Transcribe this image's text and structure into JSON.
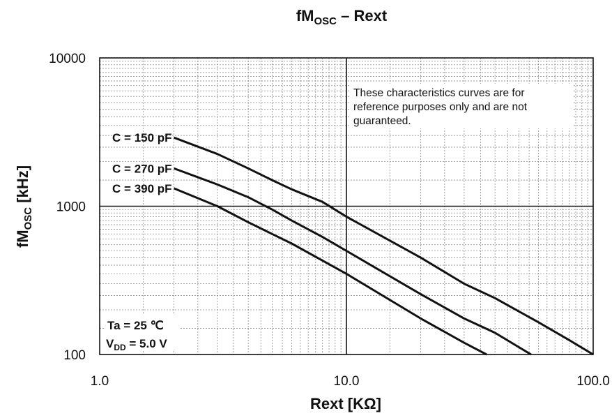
{
  "chart_data": {
    "type": "line",
    "title": {
      "main": "fM",
      "sub": "OSC",
      "rest": " – Rext"
    },
    "xlabel": "Rext [KΩ]",
    "ylabel": {
      "main": "fM",
      "sub": "OSC",
      "rest": " [kHz]"
    },
    "x_scale": "log",
    "y_scale": "log",
    "xlim": [
      1.0,
      100.0
    ],
    "ylim": [
      100,
      10000
    ],
    "x_ticks": [
      {
        "value": 1,
        "label": "1.0"
      },
      {
        "value": 10,
        "label": "10.0"
      },
      {
        "value": 100,
        "label": "100.0"
      }
    ],
    "y_ticks": [
      {
        "value": 100,
        "label": "100"
      },
      {
        "value": 1000,
        "label": "1000"
      },
      {
        "value": 10000,
        "label": "10000"
      }
    ],
    "grid": true,
    "series": [
      {
        "name": "C = 150 pF",
        "points": [
          [
            2.0,
            2900
          ],
          [
            3.0,
            2250
          ],
          [
            4.0,
            1800
          ],
          [
            5.0,
            1500
          ],
          [
            6.0,
            1300
          ],
          [
            8.0,
            1070
          ],
          [
            10.0,
            850
          ],
          [
            20.0,
            450
          ],
          [
            30.0,
            300
          ],
          [
            40.0,
            240
          ],
          [
            60.0,
            165
          ],
          [
            80.0,
            125
          ],
          [
            100.0,
            100
          ]
        ]
      },
      {
        "name": "C = 270 pF",
        "points": [
          [
            2.0,
            1800
          ],
          [
            3.0,
            1400
          ],
          [
            4.0,
            1150
          ],
          [
            5.0,
            950
          ],
          [
            6.0,
            800
          ],
          [
            8.0,
            620
          ],
          [
            10.0,
            500
          ],
          [
            20.0,
            255
          ],
          [
            30.0,
            175
          ],
          [
            40.0,
            140
          ],
          [
            56.0,
            100
          ]
        ]
      },
      {
        "name": "C = 390 pF",
        "points": [
          [
            2.0,
            1320
          ],
          [
            3.0,
            1000
          ],
          [
            4.0,
            780
          ],
          [
            5.0,
            650
          ],
          [
            6.0,
            560
          ],
          [
            8.0,
            430
          ],
          [
            10.0,
            350
          ],
          [
            20.0,
            175
          ],
          [
            30.0,
            120
          ],
          [
            37.0,
            100
          ]
        ]
      }
    ],
    "annotations": {
      "note_lines": [
        "These characteristics curves are for",
        "reference purposes only and are not",
        "guaranteed."
      ],
      "conditions_line1": "Ta = 25 ℃",
      "conditions_line2": {
        "main": "V",
        "sub": "DD",
        "rest": " = 5.0 V"
      }
    }
  }
}
